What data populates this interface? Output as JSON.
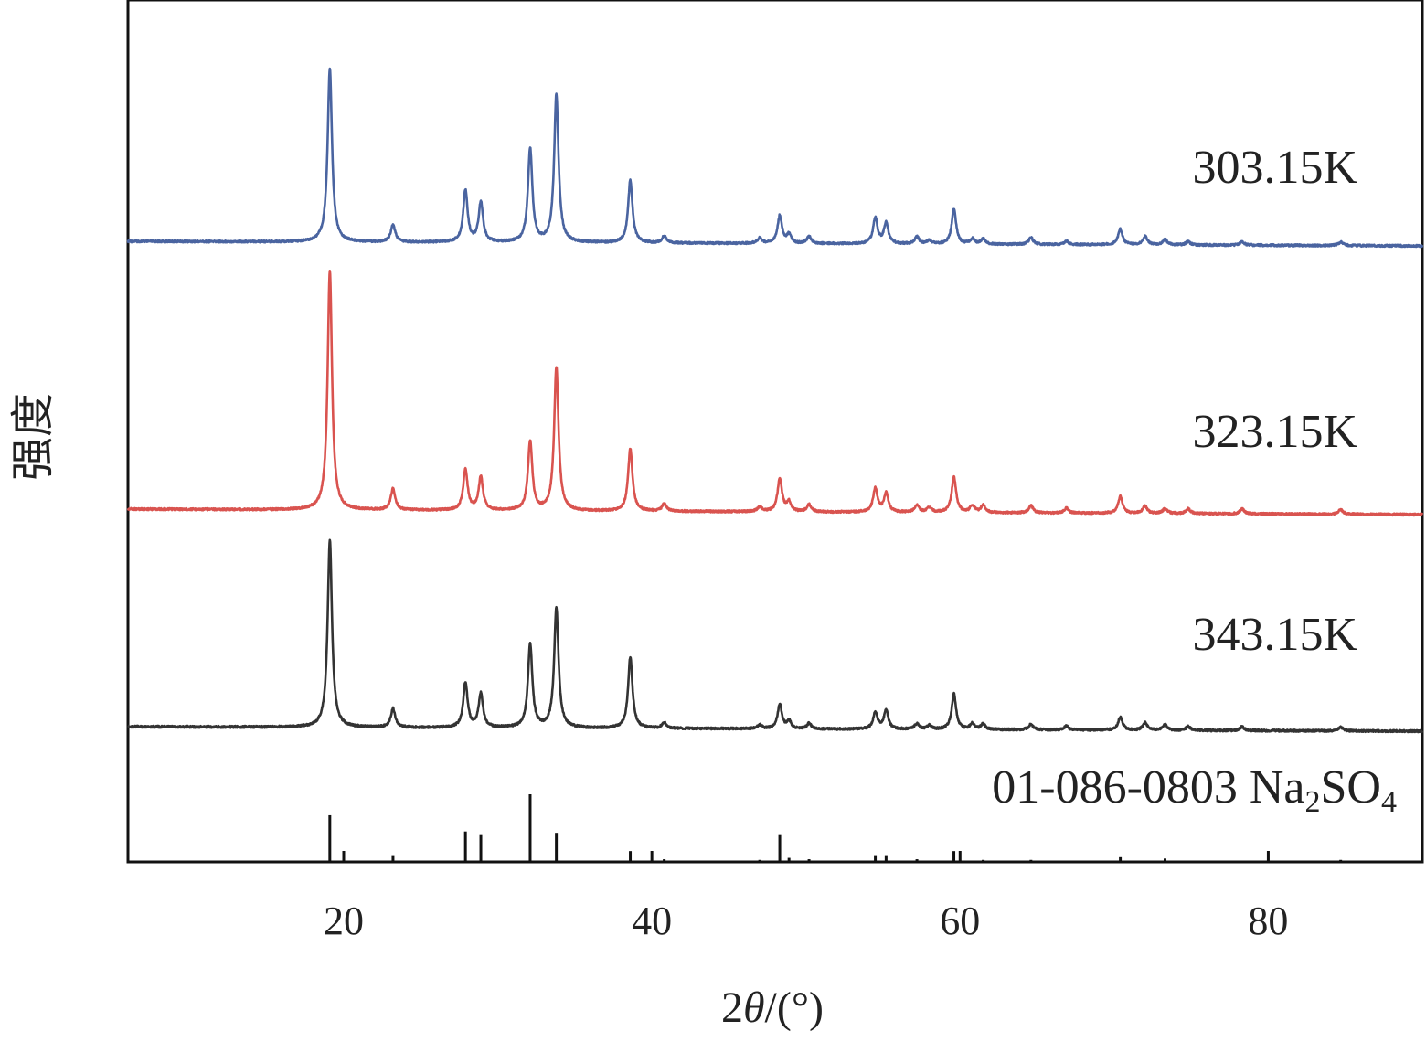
{
  "chart_data": {
    "type": "line",
    "xlabel_parts": {
      "pre": "2",
      "theta": "θ",
      "post": "/(°)"
    },
    "ylabel": "强度",
    "xlim": [
      6,
      90
    ],
    "xticks": [
      20,
      40,
      60,
      80
    ],
    "tick_labels": [
      "20",
      "40",
      "60",
      "80"
    ],
    "grid": false,
    "series": [
      {
        "name": "303.15K",
        "color": "#4a64a0",
        "peaks": [
          [
            19.1,
            1.0
          ],
          [
            23.2,
            0.1
          ],
          [
            27.9,
            0.3
          ],
          [
            28.9,
            0.23
          ],
          [
            32.1,
            0.54
          ],
          [
            33.8,
            0.85
          ],
          [
            38.6,
            0.36
          ],
          [
            40.8,
            0.04
          ],
          [
            47.0,
            0.03
          ],
          [
            48.3,
            0.16
          ],
          [
            48.9,
            0.05
          ],
          [
            50.2,
            0.04
          ],
          [
            54.5,
            0.15
          ],
          [
            55.2,
            0.12
          ],
          [
            57.2,
            0.04
          ],
          [
            58.0,
            0.02
          ],
          [
            59.6,
            0.2
          ],
          [
            60.8,
            0.03
          ],
          [
            61.5,
            0.03
          ],
          [
            64.6,
            0.04
          ],
          [
            66.9,
            0.02
          ],
          [
            70.4,
            0.09
          ],
          [
            72.0,
            0.05
          ],
          [
            73.3,
            0.03
          ],
          [
            74.8,
            0.02
          ],
          [
            78.3,
            0.02
          ],
          [
            84.7,
            0.02
          ]
        ]
      },
      {
        "name": "323.15K",
        "color": "#d9534f",
        "peaks": [
          [
            19.1,
            1.0
          ],
          [
            23.2,
            0.09
          ],
          [
            27.9,
            0.17
          ],
          [
            28.9,
            0.14
          ],
          [
            32.1,
            0.29
          ],
          [
            33.8,
            0.6
          ],
          [
            38.6,
            0.26
          ],
          [
            40.8,
            0.03
          ],
          [
            47.0,
            0.02
          ],
          [
            48.3,
            0.14
          ],
          [
            48.9,
            0.04
          ],
          [
            50.2,
            0.03
          ],
          [
            54.5,
            0.1
          ],
          [
            55.2,
            0.08
          ],
          [
            57.2,
            0.03
          ],
          [
            58.0,
            0.02
          ],
          [
            59.6,
            0.15
          ],
          [
            60.8,
            0.03
          ],
          [
            61.5,
            0.03
          ],
          [
            64.6,
            0.03
          ],
          [
            66.9,
            0.02
          ],
          [
            70.4,
            0.07
          ],
          [
            72.0,
            0.03
          ],
          [
            73.3,
            0.02
          ],
          [
            74.8,
            0.02
          ],
          [
            78.3,
            0.02
          ],
          [
            84.7,
            0.02
          ]
        ]
      },
      {
        "name": "343.15K",
        "color": "#333333",
        "peaks": [
          [
            19.1,
            1.0
          ],
          [
            23.2,
            0.1
          ],
          [
            27.9,
            0.24
          ],
          [
            28.9,
            0.18
          ],
          [
            32.1,
            0.45
          ],
          [
            33.8,
            0.64
          ],
          [
            38.6,
            0.38
          ],
          [
            40.8,
            0.03
          ],
          [
            47.0,
            0.02
          ],
          [
            48.3,
            0.13
          ],
          [
            48.9,
            0.04
          ],
          [
            50.2,
            0.03
          ],
          [
            54.5,
            0.09
          ],
          [
            55.2,
            0.1
          ],
          [
            57.2,
            0.03
          ],
          [
            58.0,
            0.02
          ],
          [
            59.6,
            0.19
          ],
          [
            60.8,
            0.03
          ],
          [
            61.5,
            0.03
          ],
          [
            64.6,
            0.03
          ],
          [
            66.9,
            0.02
          ],
          [
            70.4,
            0.07
          ],
          [
            72.0,
            0.04
          ],
          [
            73.3,
            0.03
          ],
          [
            74.8,
            0.02
          ],
          [
            78.3,
            0.02
          ],
          [
            84.7,
            0.02
          ]
        ]
      }
    ],
    "reference": {
      "label_main": "01-086-0803 Na",
      "label_sub1": "2",
      "label_mid": "SO",
      "label_sub2": "4",
      "color": "#111111",
      "sticks": [
        [
          19.1,
          0.69
        ],
        [
          23.2,
          0.1
        ],
        [
          27.9,
          0.45
        ],
        [
          28.9,
          0.41
        ],
        [
          32.1,
          1.0
        ],
        [
          33.8,
          0.43
        ],
        [
          38.6,
          0.16
        ],
        [
          40.8,
          0.04
        ],
        [
          47.0,
          0.03
        ],
        [
          48.3,
          0.41
        ],
        [
          48.9,
          0.06
        ],
        [
          50.2,
          0.04
        ],
        [
          54.5,
          0.1
        ],
        [
          55.2,
          0.1
        ],
        [
          57.2,
          0.04
        ],
        [
          59.6,
          0.16
        ],
        [
          61.5,
          0.03
        ],
        [
          64.6,
          0.03
        ],
        [
          70.4,
          0.07
        ],
        [
          73.3,
          0.05
        ],
        [
          84.7,
          0.03
        ]
      ]
    }
  }
}
